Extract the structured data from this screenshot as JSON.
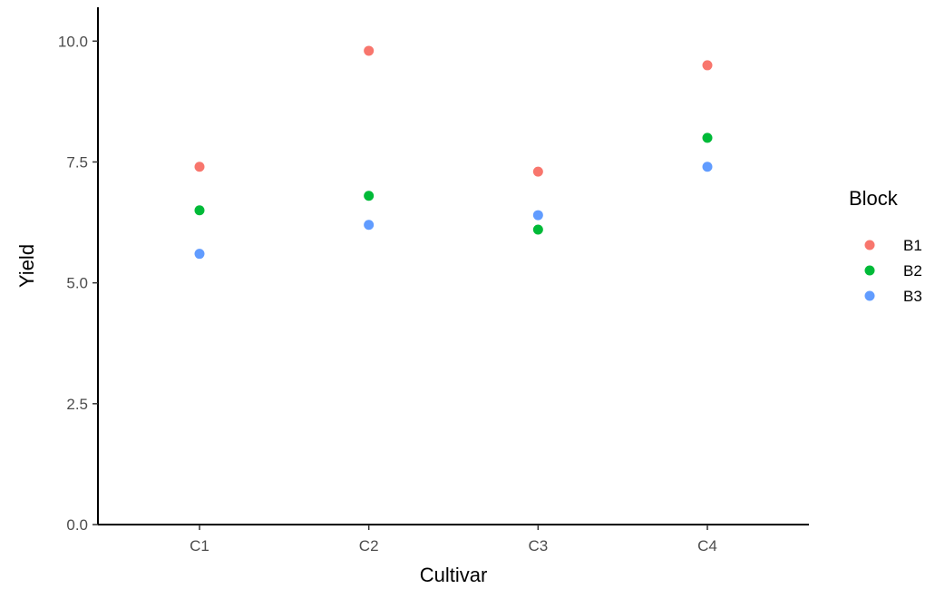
{
  "chart_data": {
    "type": "scatter",
    "title": "",
    "xlabel": "Cultivar",
    "ylabel": "Yield",
    "categories": [
      "C1",
      "C2",
      "C3",
      "C4"
    ],
    "ylim": [
      0,
      10.7
    ],
    "yticks": [
      0.0,
      2.5,
      5.0,
      7.5,
      10.0
    ],
    "ytick_labels": [
      "0.0",
      "2.5",
      "5.0",
      "7.5",
      "10.0"
    ],
    "grid": false,
    "legend": {
      "title": "Block",
      "position": "right"
    },
    "series": [
      {
        "name": "B1",
        "color": "#F8766D",
        "values": [
          7.4,
          9.8,
          7.3,
          9.5
        ]
      },
      {
        "name": "B2",
        "color": "#00BA38",
        "values": [
          6.5,
          6.8,
          6.1,
          8.0
        ]
      },
      {
        "name": "B3",
        "color": "#619CFF",
        "values": [
          5.6,
          6.2,
          6.4,
          7.4
        ]
      }
    ]
  }
}
